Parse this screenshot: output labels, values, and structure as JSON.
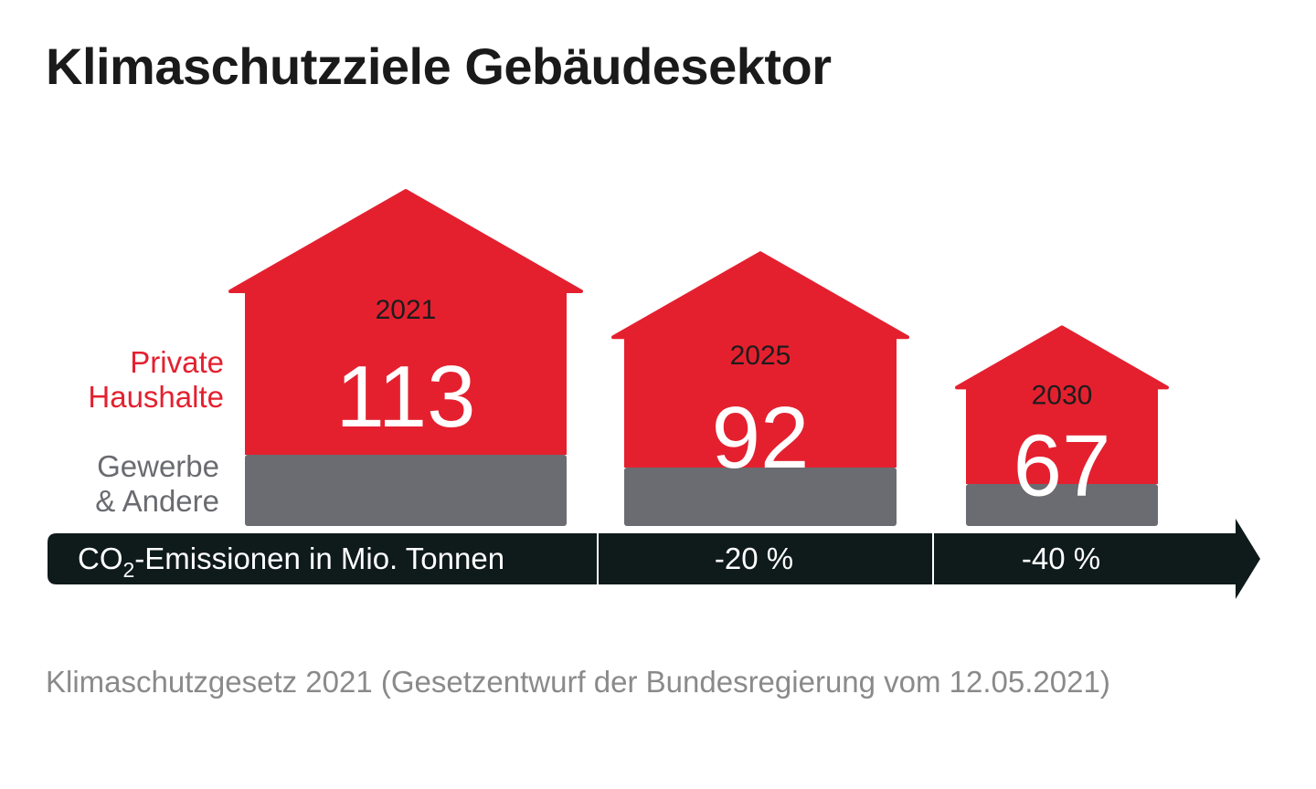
{
  "title": "Klimaschutzziele Gebäudesektor",
  "source": "Klimaschutzgesetz 2021 (Gesetzentwurf der Bundesregierung vom 12.05.2021)",
  "colors": {
    "private": "#e4202f",
    "commercial": "#6b6c71",
    "arrow": "#0f1a1a",
    "text_dark": "#1a1a1a",
    "source_text": "#8a8a8a"
  },
  "chart_data": {
    "type": "bar",
    "categories": [
      "2021",
      "2025",
      "2030"
    ],
    "values": [
      113,
      92,
      67
    ],
    "series": [
      {
        "name": "Private Haushalte"
      },
      {
        "name": "Gewerbe & Andere"
      }
    ],
    "legend": {
      "private_line1": "Private",
      "private_line2": "Haushalte",
      "commercial_line1": "Gewerbe",
      "commercial_line2": "& Andere"
    },
    "axis": {
      "label_prefix": "CO",
      "label_sub": "2",
      "label_suffix": "-Emissionen in Mio. Tonnen",
      "reductions": [
        "-20 %",
        "-40 %"
      ]
    }
  }
}
